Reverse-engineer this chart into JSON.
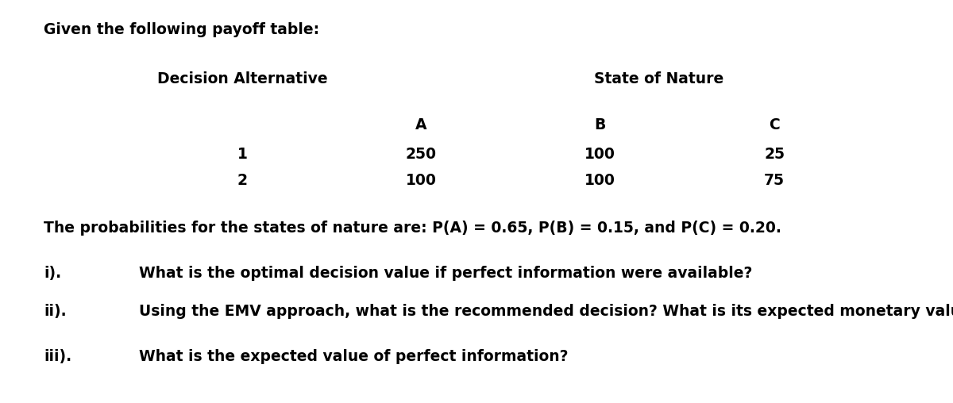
{
  "title_text": "Given the following payoff table:",
  "header_decision": "Decision Alternative",
  "header_state": "State of Nature",
  "col_headers": [
    "A",
    "B",
    "C"
  ],
  "row_labels": [
    "1",
    "2"
  ],
  "table_data": [
    [
      250,
      100,
      25
    ],
    [
      100,
      100,
      75
    ]
  ],
  "prob_text": "The probabilities for the states of nature are: P(A) = 0.65, P(B) = 0.15, and P(C) = 0.20.",
  "questions": [
    {
      "label": "i).",
      "text": "What is the optimal decision value if perfect information were available?"
    },
    {
      "label": "ii).",
      "text": "Using the EMV approach, what is the recommended decision? What is its expected monetary value?"
    },
    {
      "label": "iii).",
      "text": "What is the expected value of perfect information?"
    }
  ],
  "bg_color": "#ffffff",
  "text_color": "#000000",
  "font_family": "DejaVu Sans",
  "title_fontsize": 13.5,
  "header_fontsize": 13.5,
  "table_fontsize": 13.5,
  "prob_fontsize": 13.5,
  "question_fontsize": 13.5,
  "fig_width": 12.0,
  "fig_height": 5.08,
  "dpi": 100
}
